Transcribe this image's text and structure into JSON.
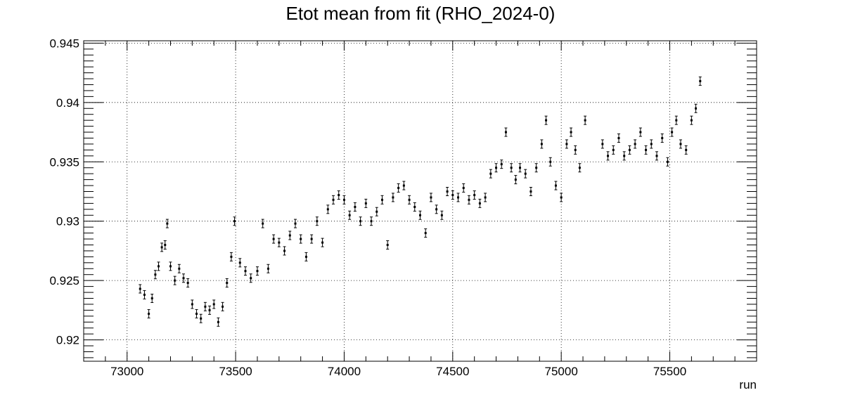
{
  "chart_data": {
    "type": "scatter",
    "title": "Etot mean from fit (RHO_2024-0)",
    "xlabel": "run",
    "ylabel": "",
    "xlim": [
      72800,
      75900
    ],
    "ylim": [
      0.9182,
      0.9452
    ],
    "grid": true,
    "error_bars": true,
    "x_ticks": [
      73000,
      73500,
      74000,
      74500,
      75000,
      75500
    ],
    "y_ticks": [
      0.92,
      0.925,
      0.93,
      0.935,
      0.94,
      0.945
    ],
    "x_tick_labels": [
      "73000",
      "73500",
      "74000",
      "74500",
      "75000",
      "75500"
    ],
    "y_tick_labels": [
      "0.92",
      "0.925",
      "0.93",
      "0.935",
      "0.94",
      "0.945"
    ],
    "series": [
      {
        "points": [
          [
            73060,
            0.9243
          ],
          [
            73080,
            0.9238
          ],
          [
            73100,
            0.9222
          ],
          [
            73115,
            0.9235
          ],
          [
            73130,
            0.9255
          ],
          [
            73145,
            0.9262
          ],
          [
            73160,
            0.9278
          ],
          [
            73175,
            0.928
          ],
          [
            73185,
            0.9298
          ],
          [
            73200,
            0.9262
          ],
          [
            73220,
            0.925
          ],
          [
            73240,
            0.926
          ],
          [
            73260,
            0.9252
          ],
          [
            73280,
            0.9248
          ],
          [
            73300,
            0.923
          ],
          [
            73320,
            0.9222
          ],
          [
            73340,
            0.9218
          ],
          [
            73360,
            0.9228
          ],
          [
            73380,
            0.9225
          ],
          [
            73400,
            0.923
          ],
          [
            73420,
            0.9215
          ],
          [
            73440,
            0.9228
          ],
          [
            73460,
            0.9248
          ],
          [
            73480,
            0.927
          ],
          [
            73495,
            0.93
          ],
          [
            73520,
            0.9265
          ],
          [
            73545,
            0.9258
          ],
          [
            73570,
            0.9252
          ],
          [
            73600,
            0.9258
          ],
          [
            73625,
            0.9298
          ],
          [
            73650,
            0.926
          ],
          [
            73675,
            0.9285
          ],
          [
            73700,
            0.9282
          ],
          [
            73725,
            0.9275
          ],
          [
            73750,
            0.9288
          ],
          [
            73775,
            0.9298
          ],
          [
            73800,
            0.9285
          ],
          [
            73825,
            0.927
          ],
          [
            73850,
            0.9285
          ],
          [
            73875,
            0.93
          ],
          [
            73900,
            0.9282
          ],
          [
            73925,
            0.931
          ],
          [
            73950,
            0.9318
          ],
          [
            73975,
            0.9322
          ],
          [
            74000,
            0.9318
          ],
          [
            74025,
            0.9305
          ],
          [
            74050,
            0.9312
          ],
          [
            74075,
            0.93
          ],
          [
            74100,
            0.9315
          ],
          [
            74125,
            0.93
          ],
          [
            74150,
            0.9308
          ],
          [
            74175,
            0.9318
          ],
          [
            74200,
            0.928
          ],
          [
            74225,
            0.932
          ],
          [
            74250,
            0.9328
          ],
          [
            74275,
            0.933
          ],
          [
            74300,
            0.9318
          ],
          [
            74325,
            0.9312
          ],
          [
            74350,
            0.9305
          ],
          [
            74375,
            0.929
          ],
          [
            74400,
            0.932
          ],
          [
            74425,
            0.931
          ],
          [
            74450,
            0.9305
          ],
          [
            74475,
            0.9325
          ],
          [
            74500,
            0.9322
          ],
          [
            74525,
            0.932
          ],
          [
            74550,
            0.9328
          ],
          [
            74575,
            0.9318
          ],
          [
            74600,
            0.9322
          ],
          [
            74625,
            0.9315
          ],
          [
            74650,
            0.932
          ],
          [
            74675,
            0.934
          ],
          [
            74700,
            0.9345
          ],
          [
            74725,
            0.9348
          ],
          [
            74745,
            0.9375
          ],
          [
            74770,
            0.9345
          ],
          [
            74790,
            0.9335
          ],
          [
            74810,
            0.9345
          ],
          [
            74835,
            0.934
          ],
          [
            74860,
            0.9325
          ],
          [
            74885,
            0.9345
          ],
          [
            74910,
            0.9365
          ],
          [
            74930,
            0.9385
          ],
          [
            74950,
            0.935
          ],
          [
            74975,
            0.933
          ],
          [
            75000,
            0.932
          ],
          [
            75025,
            0.9365
          ],
          [
            75045,
            0.9375
          ],
          [
            75065,
            0.936
          ],
          [
            75085,
            0.9345
          ],
          [
            75110,
            0.9385
          ],
          [
            75190,
            0.9365
          ],
          [
            75215,
            0.9355
          ],
          [
            75240,
            0.936
          ],
          [
            75265,
            0.937
          ],
          [
            75290,
            0.9355
          ],
          [
            75315,
            0.936
          ],
          [
            75340,
            0.9365
          ],
          [
            75365,
            0.9375
          ],
          [
            75390,
            0.936
          ],
          [
            75415,
            0.9365
          ],
          [
            75440,
            0.9355
          ],
          [
            75465,
            0.937
          ],
          [
            75490,
            0.935
          ],
          [
            75510,
            0.9375
          ],
          [
            75530,
            0.9385
          ],
          [
            75550,
            0.9365
          ],
          [
            75575,
            0.936
          ],
          [
            75600,
            0.9385
          ],
          [
            75620,
            0.9395
          ],
          [
            75640,
            0.9418
          ]
        ]
      }
    ]
  }
}
